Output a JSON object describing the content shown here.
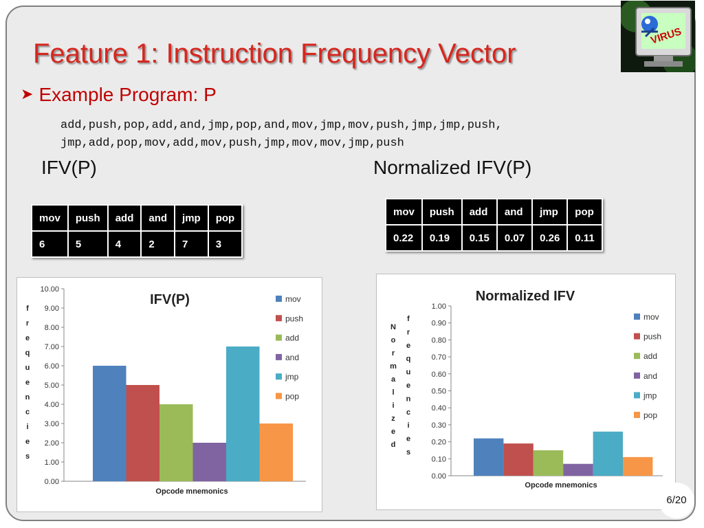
{
  "slide": {
    "title": "Feature 1: Instruction Frequency Vector",
    "bullet": "Example Program: P",
    "program_lines": [
      "add,push,pop,add,and,jmp,pop,and,mov,jmp,mov,push,jmp,jmp,push,",
      "jmp,add,pop,mov,add,mov,push,jmp,mov,mov,jmp,push"
    ],
    "heading_left": "IFV(P)",
    "heading_right": "Normalized IFV(P)",
    "page_number": "6/20",
    "logo_text": "VIRUS"
  },
  "tables": {
    "ifv": {
      "headers": [
        "mov",
        "push",
        "add",
        "and",
        "jmp",
        "pop"
      ],
      "values": [
        "6",
        "5",
        "4",
        "2",
        "7",
        "3"
      ]
    },
    "normalized": {
      "headers": [
        "mov",
        "push",
        "add",
        "and",
        "jmp",
        "pop"
      ],
      "values": [
        "0.22",
        "0.19",
        "0.15",
        "0.07",
        "0.26",
        "0.11"
      ]
    }
  },
  "colors": {
    "title": "#d7261e",
    "series": [
      "#4f81bd",
      "#c0504d",
      "#9bbb59",
      "#8064a2",
      "#4bacc6",
      "#f79646"
    ]
  },
  "chart_data": [
    {
      "type": "bar",
      "title": "IFV(P)",
      "xlabel": "Opcode mnemonics",
      "ylabel_letters": [
        "f",
        "r",
        "e",
        "q",
        "u",
        "e",
        "n",
        "c",
        "i",
        "e",
        "s"
      ],
      "ylim": [
        0,
        10
      ],
      "yticks": [
        "0.00",
        "1.00",
        "2.00",
        "3.00",
        "4.00",
        "5.00",
        "6.00",
        "7.00",
        "8.00",
        "9.00",
        "10.00"
      ],
      "grid": false,
      "legend_position": "right",
      "series": [
        {
          "name": "mov",
          "values": [
            6
          ]
        },
        {
          "name": "push",
          "values": [
            5
          ]
        },
        {
          "name": "add",
          "values": [
            4
          ]
        },
        {
          "name": "and",
          "values": [
            2
          ]
        },
        {
          "name": "jmp",
          "values": [
            7
          ]
        },
        {
          "name": "pop",
          "values": [
            3
          ]
        }
      ]
    },
    {
      "type": "bar",
      "title": "Normalized IFV",
      "xlabel": "Opcode mnemonics",
      "ylabel_col1": [
        "N",
        "o",
        "r",
        "m",
        "a",
        "l",
        "i",
        "z",
        "e",
        "d"
      ],
      "ylabel_col2": [
        "f",
        "r",
        "e",
        "q",
        "u",
        "e",
        "n",
        "c",
        "i",
        "e",
        "s"
      ],
      "ylim": [
        0,
        1
      ],
      "yticks": [
        "0.00",
        "0.10",
        "0.20",
        "0.30",
        "0.40",
        "0.50",
        "0.60",
        "0.70",
        "0.80",
        "0.90",
        "1.00"
      ],
      "grid": false,
      "legend_position": "right",
      "series": [
        {
          "name": "mov",
          "values": [
            0.22
          ]
        },
        {
          "name": "push",
          "values": [
            0.19
          ]
        },
        {
          "name": "add",
          "values": [
            0.15
          ]
        },
        {
          "name": "and",
          "values": [
            0.07
          ]
        },
        {
          "name": "jmp",
          "values": [
            0.26
          ]
        },
        {
          "name": "pop",
          "values": [
            0.11
          ]
        }
      ]
    }
  ]
}
